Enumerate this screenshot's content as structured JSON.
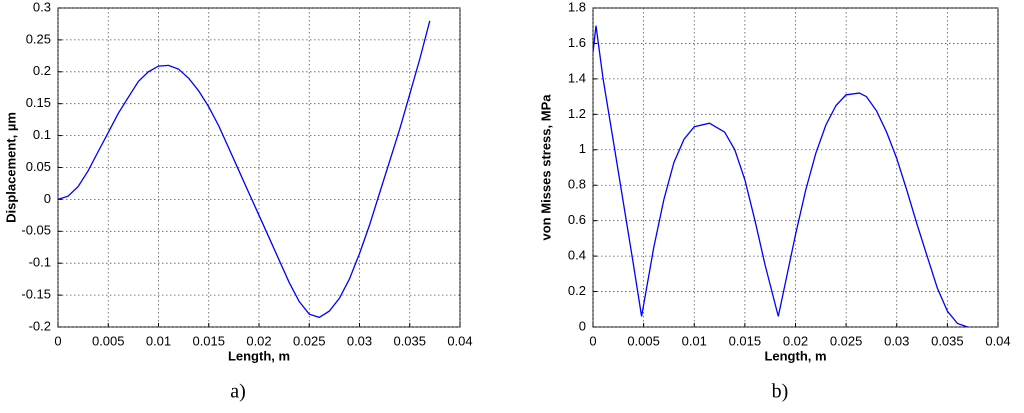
{
  "chart_data": [
    {
      "type": "line",
      "caption": "a)",
      "xlabel": "Length, m",
      "ylabel": "Displacement, µm",
      "color": "#0000ff",
      "grid": true,
      "xlim": [
        0,
        0.04
      ],
      "xticks": [
        0,
        0.005,
        0.01,
        0.015,
        0.02,
        0.025,
        0.03,
        0.035,
        0.04
      ],
      "ylim": [
        -0.2,
        0.3
      ],
      "yticks": [
        -0.2,
        -0.15,
        -0.1,
        -0.05,
        0,
        0.05,
        0.1,
        0.15,
        0.2,
        0.25,
        0.3
      ],
      "x": [
        0,
        0.001,
        0.002,
        0.003,
        0.004,
        0.005,
        0.006,
        0.007,
        0.008,
        0.009,
        0.01,
        0.011,
        0.012,
        0.013,
        0.014,
        0.015,
        0.016,
        0.017,
        0.018,
        0.019,
        0.02,
        0.021,
        0.022,
        0.023,
        0.024,
        0.025,
        0.026,
        0.027,
        0.028,
        0.029,
        0.03,
        0.031,
        0.032,
        0.033,
        0.034,
        0.035,
        0.036,
        0.037
      ],
      "values": [
        0,
        0.005,
        0.02,
        0.045,
        0.075,
        0.105,
        0.135,
        0.16,
        0.185,
        0.2,
        0.209,
        0.21,
        0.204,
        0.19,
        0.17,
        0.145,
        0.115,
        0.08,
        0.045,
        0.01,
        -0.025,
        -0.06,
        -0.095,
        -0.13,
        -0.16,
        -0.18,
        -0.185,
        -0.175,
        -0.155,
        -0.125,
        -0.085,
        -0.04,
        0.01,
        0.06,
        0.11,
        0.165,
        0.22,
        0.28
      ]
    },
    {
      "type": "line",
      "caption": "b)",
      "xlabel": "Length, m",
      "ylabel": "von Misses stress, MPa",
      "color": "#0000ff",
      "grid": true,
      "xlim": [
        0,
        0.04
      ],
      "xticks": [
        0,
        0.005,
        0.01,
        0.015,
        0.02,
        0.025,
        0.03,
        0.035,
        0.04
      ],
      "ylim": [
        0,
        1.8
      ],
      "yticks": [
        0,
        0.2,
        0.4,
        0.6,
        0.8,
        1,
        1.2,
        1.4,
        1.6,
        1.8
      ],
      "x": [
        0,
        0.0003,
        0.001,
        0.002,
        0.003,
        0.004,
        0.0048,
        0.006,
        0.007,
        0.008,
        0.009,
        0.01,
        0.0115,
        0.013,
        0.014,
        0.015,
        0.016,
        0.017,
        0.0183,
        0.019,
        0.02,
        0.021,
        0.022,
        0.023,
        0.024,
        0.025,
        0.0263,
        0.027,
        0.028,
        0.029,
        0.03,
        0.031,
        0.032,
        0.033,
        0.034,
        0.035,
        0.036,
        0.037
      ],
      "values": [
        1.55,
        1.7,
        1.4,
        1.05,
        0.7,
        0.35,
        0.06,
        0.45,
        0.72,
        0.93,
        1.06,
        1.13,
        1.15,
        1.1,
        1.0,
        0.83,
        0.6,
        0.35,
        0.06,
        0.25,
        0.52,
        0.77,
        0.98,
        1.14,
        1.25,
        1.31,
        1.32,
        1.3,
        1.22,
        1.1,
        0.95,
        0.77,
        0.58,
        0.4,
        0.22,
        0.09,
        0.02,
        0
      ]
    }
  ]
}
